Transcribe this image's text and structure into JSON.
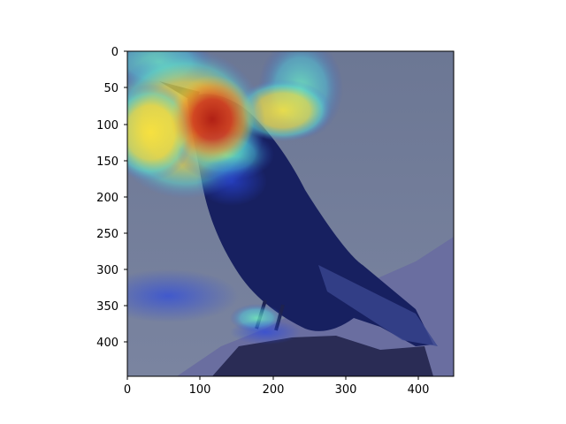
{
  "figure": {
    "content": "heatmap-overlay-on-bird-photo",
    "colormap": "jet",
    "background_color": "#ffffff"
  },
  "axes": {
    "x_ticks": [
      "0",
      "100",
      "200",
      "300",
      "400"
    ],
    "y_ticks": [
      "0",
      "50",
      "100",
      "150",
      "200",
      "250",
      "300",
      "350",
      "400"
    ],
    "x_range": [
      0,
      448
    ],
    "y_range": [
      448,
      0
    ],
    "frame_color": "#000000"
  },
  "photo": {
    "subject": "black bird perched on rock",
    "sky_color": "#6f7b96",
    "bird_color": "#172060",
    "rock_color": "#6a6ea0"
  },
  "heatmap": {
    "peak_color": "#c8211a",
    "high_color": "#e8dc4a",
    "mid_color": "#5fd3c8",
    "low_color": "#2a3ec8"
  }
}
